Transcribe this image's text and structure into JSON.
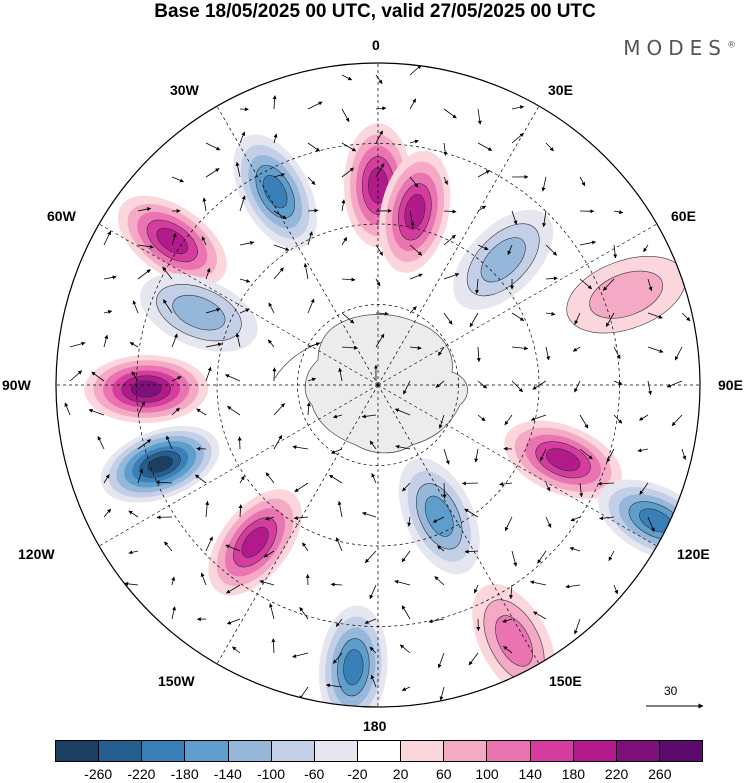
{
  "title": "Base 18/05/2025 00 UTC, valid 27/05/2025 00 UTC",
  "brand": "MODES",
  "brand_mark": "®",
  "longitude_labels": {
    "lon_0": "0",
    "lon_30e": "30E",
    "lon_60e": "60E",
    "lon_90e": "90E",
    "lon_120e": "120E",
    "lon_150e": "150E",
    "lon_180": "180",
    "lon_150w": "150W",
    "lon_120w": "120W",
    "lon_90w": "90W",
    "lon_60w": "60W",
    "lon_30w": "30W"
  },
  "reference_vector": {
    "value": "30"
  },
  "colorbar": {
    "levels": [
      "-260",
      "-220",
      "-180",
      "-140",
      "-100",
      "-60",
      "-20",
      "20",
      "60",
      "100",
      "140",
      "180",
      "220",
      "260"
    ],
    "colors": [
      "#1b3f63",
      "#255f8f",
      "#3a80b8",
      "#5d9ecd",
      "#94b7da",
      "#c3cfe6",
      "#e6e6f0",
      "#ffffff",
      "#fbd6dc",
      "#f4a9c4",
      "#ea74b1",
      "#d63c9f",
      "#b21a8c",
      "#7f0f7c",
      "#5b0b6d"
    ]
  },
  "map": {
    "projection": "south-polar-stereographic",
    "anomalies": [
      {
        "lon": 0,
        "colat": 0.62,
        "value": 200
      },
      {
        "lon": 12,
        "colat": 0.55,
        "value": 180
      },
      {
        "lon": -28,
        "colat": 0.68,
        "value": -180
      },
      {
        "lon": -55,
        "colat": 0.78,
        "value": 180
      },
      {
        "lon": -68,
        "colat": 0.6,
        "value": -120
      },
      {
        "lon": -91,
        "colat": 0.72,
        "value": 240
      },
      {
        "lon": -110,
        "colat": 0.72,
        "value": -260
      },
      {
        "lon": -142,
        "colat": 0.62,
        "value": 180
      },
      {
        "lon": -175,
        "colat": 0.88,
        "value": -200
      },
      {
        "lon": 152,
        "colat": 0.9,
        "value": 100
      },
      {
        "lon": 155,
        "colat": 0.45,
        "value": -140
      },
      {
        "lon": 112,
        "colat": 0.62,
        "value": 200
      },
      {
        "lon": 116,
        "colat": 0.96,
        "value": -180
      },
      {
        "lon": 45,
        "colat": 0.55,
        "value": -100
      },
      {
        "lon": 70,
        "colat": 0.82,
        "value": 60
      }
    ]
  }
}
